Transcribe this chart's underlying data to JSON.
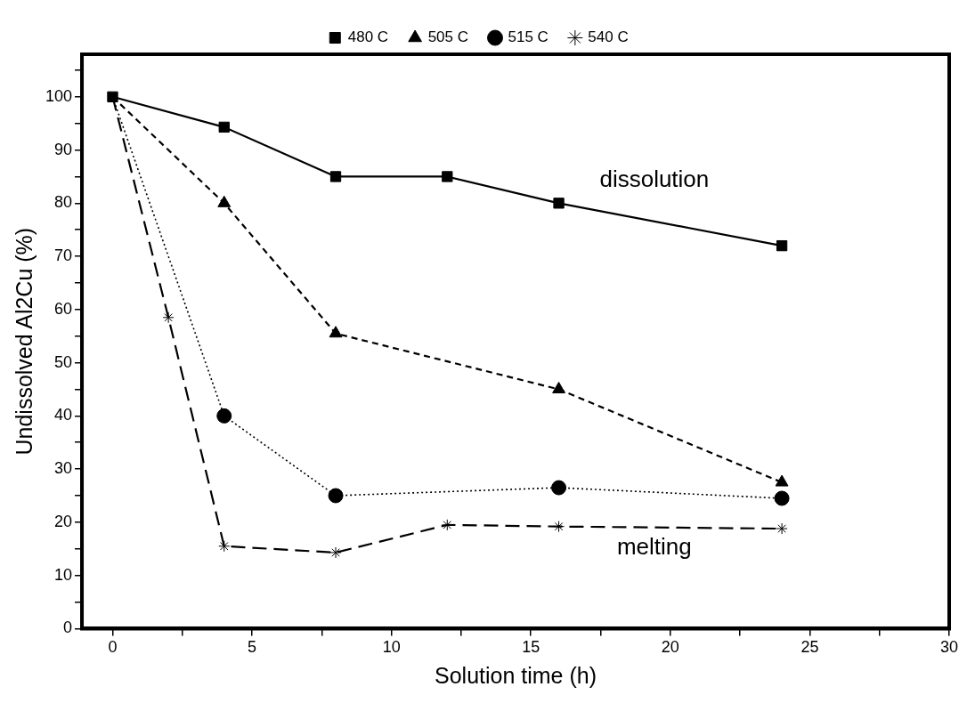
{
  "chart_data": {
    "type": "line",
    "xlabel": "Solution time (h)",
    "ylabel": "Undissolved Al2Cu (%)",
    "xlim": [
      -1.1,
      30
    ],
    "xticks": [
      0,
      {
        "value": 2.5,
        "label": null
      },
      5,
      {
        "value": 7.5,
        "label": null
      },
      10,
      {
        "value": 12.5,
        "label": null
      },
      15,
      {
        "value": 17.5,
        "label": null
      },
      20,
      {
        "value": 22.5,
        "label": null
      },
      25,
      {
        "value": 27.5,
        "label": null
      },
      30
    ],
    "ylim": [
      0,
      108
    ],
    "yticks": [
      0,
      {
        "value": 5,
        "label": null
      },
      10,
      {
        "value": 15,
        "label": null
      },
      20,
      {
        "value": 25,
        "label": null
      },
      30,
      {
        "value": 35,
        "label": null
      },
      40,
      {
        "value": 45,
        "label": null
      },
      50,
      {
        "value": 55,
        "label": null
      },
      60,
      {
        "value": 65,
        "label": null
      },
      70,
      {
        "value": 75,
        "label": null
      },
      80,
      {
        "value": 85,
        "label": null
      },
      90,
      {
        "value": 95,
        "label": null
      },
      100,
      {
        "value": 105,
        "label": null
      }
    ],
    "grid": false,
    "legend": "top",
    "series": [
      {
        "name": "480 C",
        "color": "#000000",
        "marker": "square",
        "line_style": "solid",
        "x": [
          0,
          4,
          8,
          12,
          16,
          24
        ],
        "values": [
          100,
          94.3,
          85,
          85,
          80,
          72
        ]
      },
      {
        "name": "505 C",
        "color": "#000000",
        "marker": "triangle",
        "line_style": "dashed",
        "x": [
          0,
          4,
          8,
          16,
          24
        ],
        "values": [
          100,
          80,
          55.5,
          45,
          27.5
        ]
      },
      {
        "name": "515 C",
        "color": "#000000",
        "marker": "circle",
        "line_style": "dotted",
        "x": [
          0,
          4,
          8,
          16,
          24
        ],
        "values": [
          100,
          40,
          25,
          26.5,
          24.5
        ]
      },
      {
        "name": "540 C",
        "color": "#000000",
        "marker": "cross",
        "line_style": "dashed",
        "x": [
          0,
          2,
          4,
          8,
          12,
          16,
          24
        ],
        "values": [
          100,
          58.5,
          15.5,
          14.3,
          19.5,
          19.2,
          18.8
        ]
      }
    ],
    "annotations": [
      "dissolution",
      "melting"
    ]
  }
}
